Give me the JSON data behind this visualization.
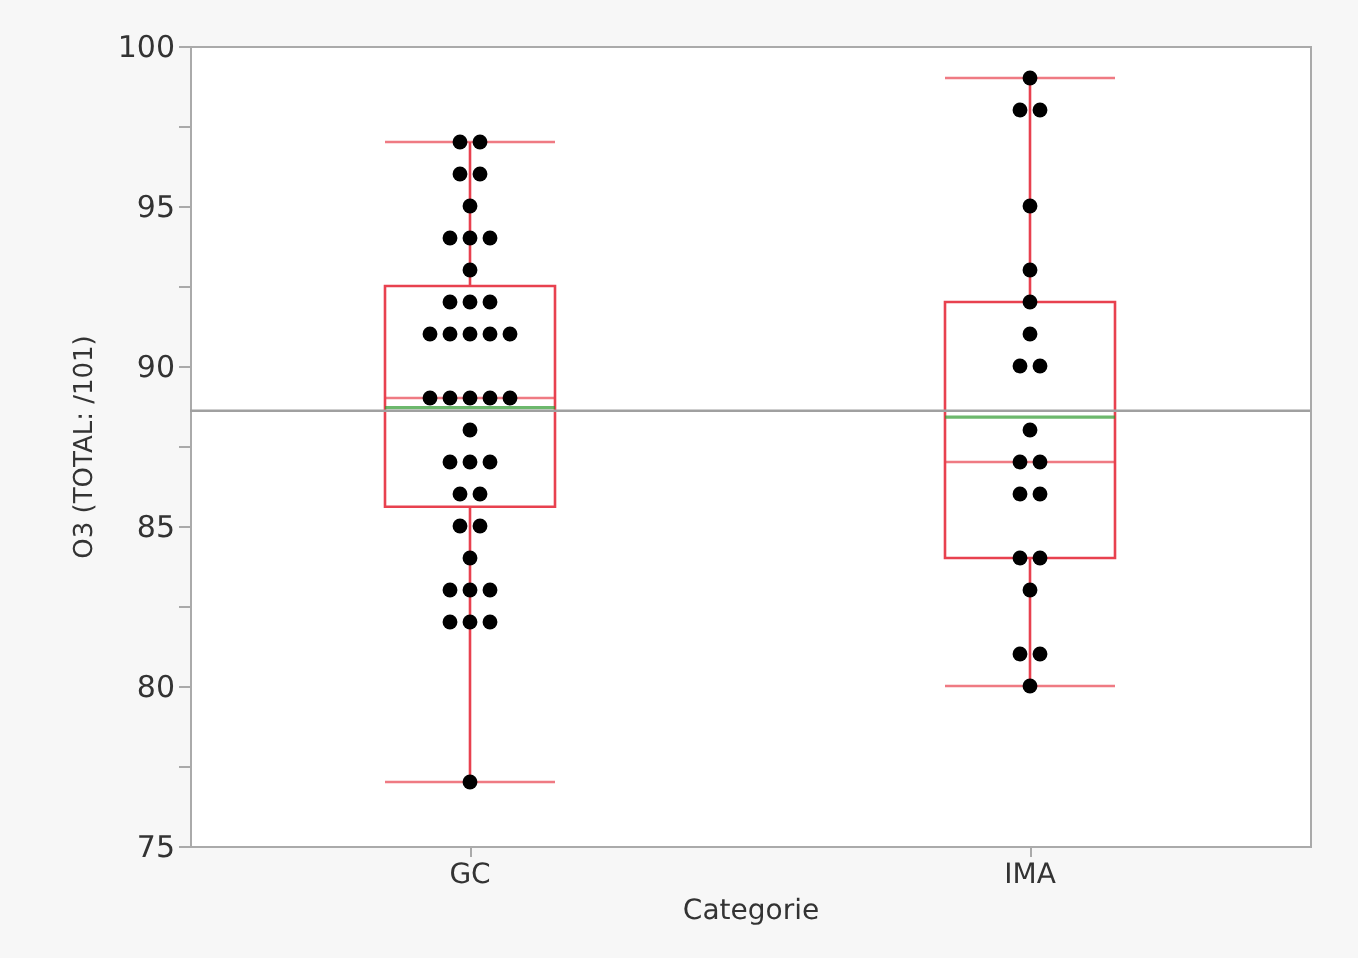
{
  "chart_data": {
    "type": "box",
    "xlabel": "Categorie",
    "ylabel": "O3 (TOTAL: /101)",
    "categories": [
      "GC",
      "IMA"
    ],
    "boxes": [
      {
        "low": 77,
        "q1": 85.6,
        "median": 89,
        "q3": 92.5,
        "high": 97,
        "mean": 88.7
      },
      {
        "low": 80,
        "q1": 84,
        "median": 87,
        "q3": 92,
        "high": 99,
        "mean": 88.4
      }
    ],
    "series": [
      {
        "type": "scatter",
        "color": "#000000",
        "marker": "circle",
        "x": [
          "GC",
          "GC",
          "GC",
          "GC",
          "GC",
          "GC",
          "GC",
          "GC",
          "GC",
          "GC",
          "GC",
          "GC",
          "GC",
          "GC",
          "GC",
          "GC",
          "GC",
          "GC",
          "GC",
          "GC",
          "GC",
          "GC",
          "GC",
          "GC",
          "GC",
          "GC",
          "GC",
          "GC",
          "GC",
          "GC",
          "GC",
          "GC",
          "GC",
          "GC",
          "GC",
          "GC",
          "GC",
          "GC",
          "IMA",
          "IMA",
          "IMA",
          "IMA",
          "IMA",
          "IMA",
          "IMA",
          "IMA",
          "IMA",
          "IMA",
          "IMA",
          "IMA",
          "IMA",
          "IMA",
          "IMA",
          "IMA",
          "IMA",
          "IMA",
          "IMA",
          "IMA"
        ],
        "values": [
          97,
          97,
          96,
          96,
          95,
          94,
          94,
          94,
          93,
          92,
          92,
          92,
          91,
          91,
          91,
          91,
          91,
          89,
          89,
          89,
          89,
          89,
          88,
          87,
          87,
          87,
          86,
          86,
          85,
          85,
          84,
          83,
          83,
          83,
          82,
          82,
          82,
          77,
          99,
          98,
          98,
          95,
          93,
          92,
          91,
          90,
          90,
          88,
          87,
          87,
          86,
          86,
          84,
          84,
          83,
          81,
          81,
          80
        ]
      }
    ],
    "ylim": [
      75,
      100
    ],
    "yticks": [
      75,
      {
        "value": 77.5,
        "label": null
      },
      80,
      {
        "value": 82.5,
        "label": null
      },
      85,
      {
        "value": 87.5,
        "label": null
      },
      90,
      {
        "value": 92.5,
        "label": null
      },
      95,
      {
        "value": 97.5,
        "label": null
      },
      100
    ],
    "ref_lines": [
      {
        "axis": "y",
        "value": 88.6,
        "color": "#a0a0a0"
      }
    ]
  }
}
